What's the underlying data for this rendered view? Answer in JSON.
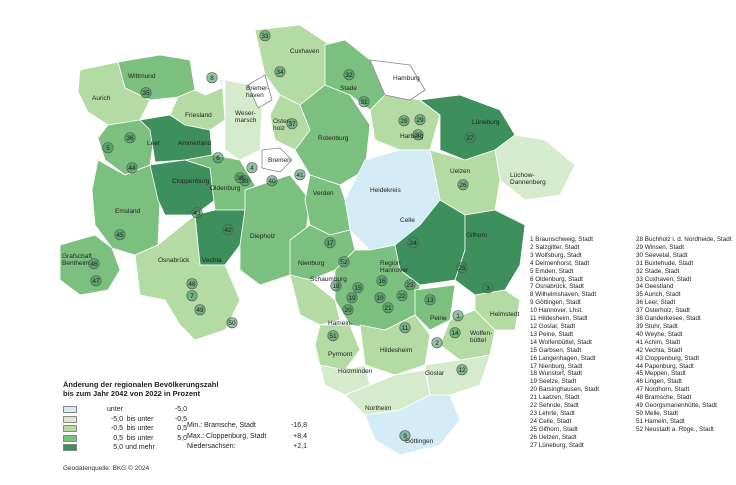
{
  "legend": {
    "title_line1": "Änderung der regionalen Bevölkerungszahl",
    "title_line2": "bis zum Jahr 2042 von 2022 in Prozent",
    "classes": [
      {
        "from": "unter",
        "mid": "",
        "to": "-5,0",
        "color": "#d3ecf5"
      },
      {
        "from": "-5,0",
        "mid": "bis unter",
        "to": "-0,5",
        "color": "#d6ebcc"
      },
      {
        "from": "-0,5",
        "mid": "bis unter",
        "to": "0,5",
        "color": "#b4dba4"
      },
      {
        "from": "0,5",
        "mid": "bis unter",
        "to": "5,0",
        "color": "#7cc07f"
      },
      {
        "from": "5,0",
        "mid": "und mehr",
        "to": "",
        "color": "#3d8f5b"
      }
    ]
  },
  "stats": [
    {
      "label": "Min.:",
      "place": "Bramsche, Stadt",
      "value": "-16,8"
    },
    {
      "label": "Max.:",
      "place": "Cloppenburg, Stadt",
      "value": "+8,4"
    },
    {
      "label": "Niedersachsen:",
      "place": "",
      "value": "+2,1"
    }
  ],
  "source": "Geodatenquelle: BKG © 2024",
  "index_col1": [
    "1 Braunschweig, Stadt",
    "2 Salzgitter, Stadt",
    "3 Wolfsburg, Stadt",
    "4 Delmenhorst, Stadt",
    "5 Emden, Stadt",
    "6 Oldenburg, Stadt",
    "7 Osnabrück, Stadt",
    "8 Wilhelmshaven, Stadt",
    "9 Göttingen, Stadt",
    "10 Hannover, Lhst.",
    "11 Hildesheim, Stadt",
    "12 Goslar, Stadt",
    "13 Peine, Stadt",
    "14 Wolfenbüttel, Stadt",
    "15 Garbsen, Stadt",
    "16 Langenhagen, Stadt",
    "17 Nienburg, Stadt",
    "18 Wunstorf, Stadt",
    "19 Seelze, Stadt",
    "20 Barsinghausen, Stadt",
    "21 Laatzen, Stadt",
    "22 Sehnde, Stadt",
    "23 Lehrte, Stadt",
    "24 Celle, Stadt",
    "25 Gifhorn, Stadt",
    "26 Uelzen, Stadt",
    "27 Lüneburg, Stadt"
  ],
  "index_col2": [
    "28 Buchholz i. d. Nordheide, Stadt",
    "29 Winsen, Stadt",
    "30 Seevetal, Stadt",
    "31 Buxtehude, Stadt",
    "32 Stade, Stadt",
    "33 Cuxhaven, Stadt",
    "34 Geestland",
    "35 Aurich, Stadt",
    "36 Leer, Stadt",
    "37 Osterholz, Stadt",
    "38 Ganderkesee, Stadt",
    "39 Stuhr, Stadt",
    "40 Weyhe, Stadt",
    "41 Achim, Stadt",
    "42 Vechta, Stadt",
    "43 Cloppenburg, Stadt",
    "44 Papenburg, Stadt",
    "45 Meppen, Stadt",
    "46 Lingen, Stadt",
    "47 Nordhorn, Stadt",
    "48 Bramsche, Stadt",
    "49 Georgsmarienhütte, Stadt",
    "50 Melle, Stadt",
    "51 Hameln, Stadt",
    "52 Neustadt a. Rbge., Stadt"
  ],
  "map": {
    "regions": [
      {
        "name": "Wittmund",
        "cls": 4
      },
      {
        "name": "Aurich",
        "cls": 3
      },
      {
        "name": "Friesland",
        "cls": 3
      },
      {
        "name": "Leer",
        "cls": 4
      },
      {
        "name": "Ammerland",
        "cls": 5
      },
      {
        "name": "Emsland",
        "cls": 4
      },
      {
        "name": "Grafschaft Bentheim",
        "cls": 4
      },
      {
        "name": "Cloppenburg",
        "cls": 5
      },
      {
        "name": "Oldenburg",
        "cls": 4
      },
      {
        "name": "Vechta",
        "cls": 5
      },
      {
        "name": "Osnabrück",
        "cls": 3
      },
      {
        "name": "Diepholz",
        "cls": 4
      },
      {
        "name": "Wesermarsch",
        "cls": 2
      },
      {
        "name": "Cuxhaven",
        "cls": 3
      },
      {
        "name": "Osterholz",
        "cls": 3
      },
      {
        "name": "Rotenburg",
        "cls": 4
      },
      {
        "name": "Stade",
        "cls": 4
      },
      {
        "name": "Harburg",
        "cls": 3
      },
      {
        "name": "Lüneburg",
        "cls": 5
      },
      {
        "name": "Lüchow-Dannenberg",
        "cls": 2
      },
      {
        "name": "Uelzen",
        "cls": 3
      },
      {
        "name": "Heidekreis",
        "cls": 1
      },
      {
        "name": "Celle",
        "cls": 5
      },
      {
        "name": "Gifhorn",
        "cls": 5
      },
      {
        "name": "Verden",
        "cls": 4
      },
      {
        "name": "Nienburg",
        "cls": 4
      },
      {
        "name": "Region Hannover",
        "cls": 4
      },
      {
        "name": "Schaumburg",
        "cls": 3
      },
      {
        "name": "Hameln-Pyrmont",
        "cls": 3
      },
      {
        "name": "Hildesheim",
        "cls": 3
      },
      {
        "name": "Holzminden",
        "cls": 2
      },
      {
        "name": "Northeim",
        "cls": 2
      },
      {
        "name": "Göttingen",
        "cls": 1
      },
      {
        "name": "Goslar",
        "cls": 2
      },
      {
        "name": "Peine",
        "cls": 4
      },
      {
        "name": "Wolfenbüttel",
        "cls": 3
      },
      {
        "name": "Helmstedt",
        "cls": 3
      },
      {
        "name": "Bremen",
        "cls": 0
      },
      {
        "name": "Bremerhaven",
        "cls": 0
      },
      {
        "name": "Hamburg",
        "cls": 0
      }
    ],
    "city_numbers": [
      "1",
      "2",
      "3",
      "4",
      "5",
      "6",
      "7",
      "8",
      "9",
      "10",
      "11",
      "12",
      "13",
      "14",
      "15",
      "16",
      "17",
      "18",
      "19",
      "20",
      "21",
      "22",
      "23",
      "24",
      "25",
      "26",
      "27",
      "28",
      "29",
      "30",
      "31",
      "32",
      "33",
      "34",
      "35",
      "36",
      "37",
      "38",
      "39",
      "40",
      "41",
      "42",
      "43",
      "44",
      "45",
      "46",
      "47",
      "48",
      "49",
      "50",
      "51",
      "52"
    ]
  }
}
